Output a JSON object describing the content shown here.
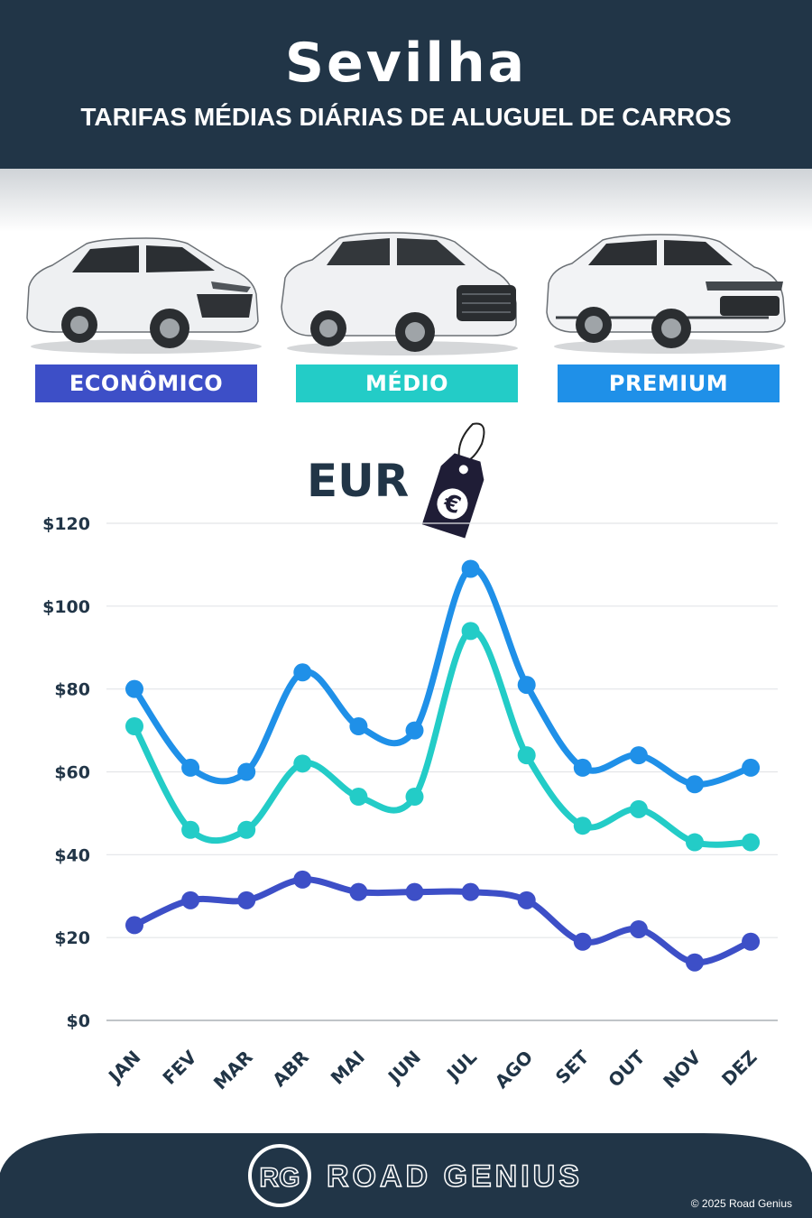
{
  "header": {
    "city": "Sevilha",
    "subtitle": "TARIFAS MÉDIAS DIÁRIAS DE ALUGUEL DE CARROS"
  },
  "categories": [
    {
      "label": "ECONÔMICO",
      "color": "#3d4fc7"
    },
    {
      "label": "MÉDIO",
      "color": "#23ccc7"
    },
    {
      "label": "PREMIUM",
      "color": "#1f90e8"
    }
  ],
  "currency": {
    "label": "EUR",
    "icon": "euro-price-tag-icon",
    "symbol": "€"
  },
  "chart_data": {
    "type": "line",
    "categories": [
      "JAN",
      "FEV",
      "MAR",
      "ABR",
      "MAI",
      "JUN",
      "JUL",
      "AGO",
      "SET",
      "OUT",
      "NOV",
      "DEZ"
    ],
    "series": [
      {
        "name": "ECONÔMICO",
        "color": "#3d4fc7",
        "values": [
          23,
          29,
          29,
          34,
          31,
          31,
          31,
          29,
          19,
          22,
          14,
          19
        ]
      },
      {
        "name": "MÉDIO",
        "color": "#23ccc7",
        "values": [
          71,
          46,
          46,
          62,
          54,
          54,
          94,
          64,
          47,
          51,
          43,
          43
        ]
      },
      {
        "name": "PREMIUM",
        "color": "#1f90e8",
        "values": [
          80,
          61,
          60,
          84,
          71,
          70,
          109,
          81,
          61,
          64,
          57,
          61
        ]
      }
    ],
    "yticks": [
      "$0",
      "$20",
      "$40",
      "$60",
      "$80",
      "$100",
      "$120"
    ],
    "ylim": [
      0,
      120
    ],
    "grid": true
  },
  "footer": {
    "logo_initials": "RG",
    "brand": "ROAD GENIUS",
    "copyright": "© 2025 Road Genius"
  }
}
